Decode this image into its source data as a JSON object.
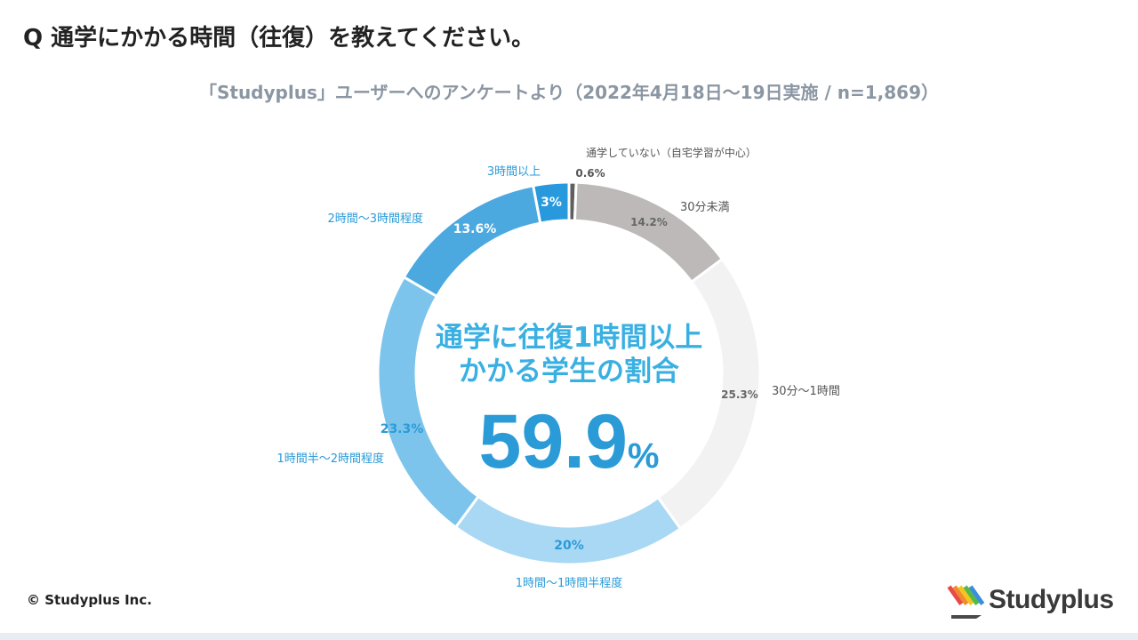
{
  "title": "Q 通学にかかる時間（往復）を教えてください。",
  "subtitle": "「Studyplus」ユーザーへのアンケートより（2022年4月18日〜19日実施 / n=1,869）",
  "center": {
    "line1": "通学に往復1時間以上",
    "line2": "かかる学生の割合",
    "value": "59.9",
    "unit": "%"
  },
  "copyright": "© Studyplus Inc.",
  "logo": {
    "text": "Studyplus"
  },
  "chart_data": {
    "type": "pie",
    "categories": [
      "通学していない（自宅学習が中心）",
      "30分未満",
      "30分〜1時間",
      "1時間〜1時間半程度",
      "1時間半〜2時間程度",
      "2時間〜3時間程度",
      "3時間以上"
    ],
    "values": [
      0.6,
      14.2,
      25.3,
      20,
      23.3,
      13.6,
      3
    ],
    "value_labels": [
      "0.6%",
      "14.2%",
      "25.3%",
      "20%",
      "23.3%",
      "13.6%",
      "3%"
    ],
    "colors": [
      "#5f5f5f",
      "#bdb9b9",
      "#f2f2f2",
      "#a8d8f3",
      "#7cc4ec",
      "#4ba9e0",
      "#2899dc"
    ],
    "label_colors": [
      "#555555",
      "#555555",
      "#555555",
      "#2b9bd7",
      "#2b9bd7",
      "#2b9bd7",
      "#2b9bd7"
    ],
    "value_text_colors": [
      "#555555",
      "#666666",
      "#666666",
      "#2b9bd7",
      "#2b9bd7",
      "#ffffff",
      "#ffffff"
    ],
    "donut": true,
    "legend": "none"
  }
}
